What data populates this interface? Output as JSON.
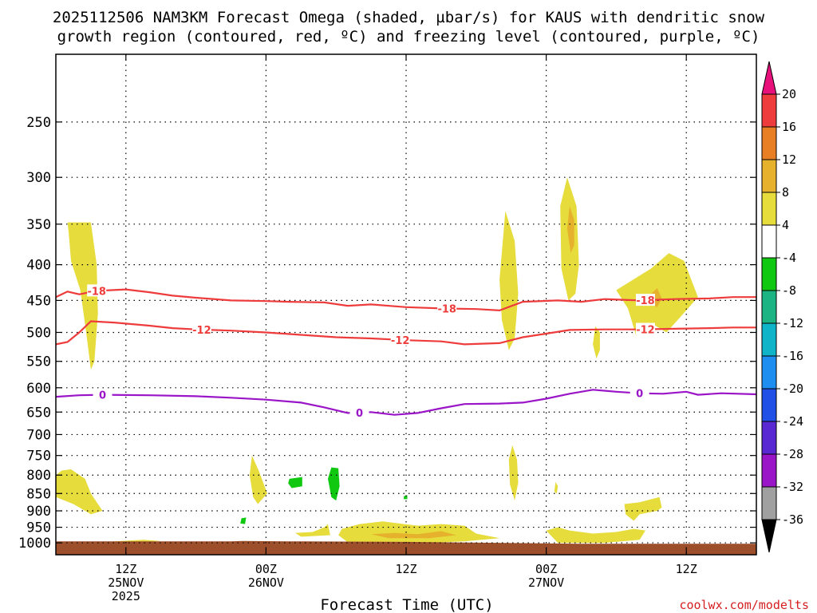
{
  "chart_data": {
    "type": "time-height cross section",
    "title_line1": "2025112506 NAM3KM Forecast Omega (shaded, µbar/s) for KAUS with dendritic snow",
    "title_line2": "growth region (contoured, red, ºC) and freezing level (contoured, purple, ºC)",
    "xlabel": "Forecast Time (UTC)",
    "credit": "coolwx.com/modelts",
    "x_range_hours": [
      0,
      60
    ],
    "y_axis": {
      "type": "pressure (log)",
      "range_hPa": [
        200,
        1040
      ],
      "ticks": [
        250,
        300,
        350,
        400,
        450,
        500,
        550,
        600,
        650,
        700,
        750,
        800,
        850,
        900,
        950,
        1000
      ]
    },
    "x_ticks": [
      {
        "hour": 6,
        "line1": "12Z",
        "line2": "25NOV",
        "line3": "2025"
      },
      {
        "hour": 18,
        "line1": "00Z",
        "line2": "26NOV",
        "line3": ""
      },
      {
        "hour": 30,
        "line1": "12Z",
        "line2": "",
        "line3": ""
      },
      {
        "hour": 42,
        "line1": "00Z",
        "line2": "27NOV",
        "line3": ""
      },
      {
        "hour": 54,
        "line1": "12Z",
        "line2": "",
        "line3": ""
      }
    ],
    "colorbar": {
      "labels": [
        "20",
        "16",
        "12",
        "8",
        "4",
        "-4",
        "-8",
        "-12",
        "-16",
        "-20",
        "-24",
        "-28",
        "-32",
        "-36"
      ],
      "colors": [
        "#e8107a",
        "#ee3c3c",
        "#e97f24",
        "#e6b22e",
        "#e6dc3c",
        "#ffffff",
        "#10c810",
        "#1cb482",
        "#10b4c8",
        "#1e8ff0",
        "#2050e6",
        "#5a28d2",
        "#9a14c8",
        "#a0a0a0",
        "#000000"
      ]
    },
    "contours": [
      {
        "label": "-18",
        "color": "#ee3c3c",
        "label_positions": [
          3.5,
          33.5,
          50.5
        ],
        "points": [
          [
            0,
            445
          ],
          [
            1,
            437
          ],
          [
            2,
            441
          ],
          [
            3.5,
            436
          ],
          [
            6,
            434
          ],
          [
            8,
            438
          ],
          [
            10,
            443
          ],
          [
            12,
            446
          ],
          [
            15,
            450
          ],
          [
            18,
            451
          ],
          [
            20,
            452
          ],
          [
            23,
            453
          ],
          [
            25,
            458
          ],
          [
            27,
            456
          ],
          [
            30,
            460
          ],
          [
            33,
            462
          ],
          [
            36,
            463
          ],
          [
            38,
            465
          ],
          [
            40,
            452
          ],
          [
            43,
            450
          ],
          [
            45,
            452
          ],
          [
            47,
            448
          ],
          [
            50,
            450
          ],
          [
            53,
            448
          ],
          [
            56,
            447
          ],
          [
            58,
            445
          ],
          [
            60,
            445
          ]
        ]
      },
      {
        "label": "-12",
        "color": "#ee3c3c",
        "label_positions": [
          12.5,
          29.5,
          50.5
        ],
        "points": [
          [
            0,
            520
          ],
          [
            1,
            516
          ],
          [
            2,
            500
          ],
          [
            3,
            482
          ],
          [
            5,
            484
          ],
          [
            8,
            489
          ],
          [
            10,
            493
          ],
          [
            12,
            495
          ],
          [
            15,
            497
          ],
          [
            18,
            500
          ],
          [
            21,
            504
          ],
          [
            24,
            508
          ],
          [
            27,
            510
          ],
          [
            30,
            513
          ],
          [
            33,
            515
          ],
          [
            35,
            520
          ],
          [
            38,
            518
          ],
          [
            40,
            508
          ],
          [
            42,
            502
          ],
          [
            44,
            496
          ],
          [
            47,
            495
          ],
          [
            50,
            495
          ],
          [
            53,
            494
          ],
          [
            56,
            493
          ],
          [
            58,
            492
          ],
          [
            60,
            492
          ]
        ]
      },
      {
        "label": "0",
        "color": "#9a14c8",
        "label_positions": [
          4,
          26,
          50
        ],
        "points": [
          [
            0,
            618
          ],
          [
            2,
            615
          ],
          [
            4,
            614
          ],
          [
            8,
            615
          ],
          [
            12,
            617
          ],
          [
            15,
            620
          ],
          [
            18,
            624
          ],
          [
            21,
            630
          ],
          [
            23,
            640
          ],
          [
            25,
            652
          ],
          [
            27,
            650
          ],
          [
            29,
            656
          ],
          [
            31,
            652
          ],
          [
            33,
            642
          ],
          [
            35,
            633
          ],
          [
            38,
            632
          ],
          [
            40,
            630
          ],
          [
            42,
            622
          ],
          [
            44,
            612
          ],
          [
            46,
            604
          ],
          [
            48,
            608
          ],
          [
            50,
            611
          ],
          [
            52,
            612
          ],
          [
            54,
            608
          ],
          [
            55,
            614
          ],
          [
            57,
            611
          ],
          [
            60,
            613
          ]
        ]
      }
    ],
    "omega_regions": [
      {
        "name": "upper-left-updraft",
        "value": 4,
        "points": [
          [
            1,
            348
          ],
          [
            3,
            348
          ],
          [
            3.5,
            400
          ],
          [
            3.6,
            470
          ],
          [
            3.3,
            550
          ],
          [
            3,
            565
          ],
          [
            2.6,
            500
          ],
          [
            2.1,
            435
          ],
          [
            1.3,
            395
          ],
          [
            1.1,
            360
          ]
        ]
      },
      {
        "name": "upper-right-plume-a",
        "value": 4,
        "points": [
          [
            38.5,
            335
          ],
          [
            39.3,
            370
          ],
          [
            39.6,
            440
          ],
          [
            39.3,
            510
          ],
          [
            38.8,
            530
          ],
          [
            38.2,
            480
          ],
          [
            38,
            420
          ]
        ]
      },
      {
        "name": "upper-right-plume-b",
        "value": 4,
        "points": [
          [
            43.8,
            300
          ],
          [
            44.6,
            330
          ],
          [
            44.8,
            400
          ],
          [
            44.5,
            440
          ],
          [
            43.9,
            450
          ],
          [
            43.3,
            405
          ],
          [
            43.2,
            330
          ]
        ]
      },
      {
        "name": "upper-right-plume-b-core",
        "value": 8,
        "points": [
          [
            44,
            330
          ],
          [
            44.4,
            345
          ],
          [
            44.4,
            375
          ],
          [
            44.1,
            385
          ],
          [
            43.8,
            355
          ]
        ]
      },
      {
        "name": "upper-right-cluster",
        "value": 4,
        "points": [
          [
            48,
            435
          ],
          [
            51,
            405
          ],
          [
            52.5,
            385
          ],
          [
            53.8,
            395
          ],
          [
            55,
            445
          ],
          [
            53.5,
            475
          ],
          [
            52.3,
            500
          ],
          [
            51,
            485
          ],
          [
            50.5,
            495
          ],
          [
            49.7,
            505
          ],
          [
            49,
            462
          ]
        ]
      },
      {
        "name": "upper-right-cluster-core",
        "value": 8,
        "points": [
          [
            51,
            440
          ],
          [
            51.5,
            432
          ],
          [
            51.9,
            447
          ],
          [
            51.5,
            460
          ],
          [
            51,
            455
          ]
        ]
      },
      {
        "name": "small-upper-right",
        "value": 4,
        "points": [
          [
            46.2,
            490
          ],
          [
            46.6,
            500
          ],
          [
            46.6,
            530
          ],
          [
            46.3,
            545
          ],
          [
            46,
            520
          ]
        ]
      },
      {
        "name": "low-left",
        "value": 4,
        "points": [
          [
            0,
            800
          ],
          [
            0.5,
            788
          ],
          [
            1.3,
            785
          ],
          [
            2.5,
            810
          ],
          [
            3,
            850
          ],
          [
            4,
            900
          ],
          [
            3,
            910
          ],
          [
            1.5,
            880
          ],
          [
            0,
            860
          ]
        ]
      },
      {
        "name": "low-left-streak",
        "value": 4,
        "points": [
          [
            3.5,
            1005
          ],
          [
            5,
            995
          ],
          [
            7.5,
            990
          ],
          [
            9,
            994
          ],
          [
            6,
            1002
          ]
        ]
      },
      {
        "name": "low-mid-a",
        "value": 4,
        "points": [
          [
            16.8,
            750
          ],
          [
            17.4,
            790
          ],
          [
            18.1,
            850
          ],
          [
            17.3,
            880
          ],
          [
            16.9,
            860
          ],
          [
            16.6,
            800
          ]
        ]
      },
      {
        "name": "low-mid-green-a",
        "value": -4,
        "points": [
          [
            20,
            810
          ],
          [
            21.1,
            805
          ],
          [
            21.1,
            830
          ],
          [
            20.2,
            835
          ],
          [
            19.9,
            822
          ]
        ]
      },
      {
        "name": "low-mid-green-b",
        "value": -4,
        "points": [
          [
            23.6,
            780
          ],
          [
            24.2,
            782
          ],
          [
            24.3,
            830
          ],
          [
            24,
            870
          ],
          [
            23.6,
            860
          ],
          [
            23.3,
            810
          ]
        ]
      },
      {
        "name": "low-mid-green-c",
        "value": -4,
        "points": [
          [
            15.9,
            922
          ],
          [
            16.3,
            920
          ],
          [
            16.2,
            940
          ],
          [
            15.8,
            938
          ]
        ]
      },
      {
        "name": "low-mid-green-d",
        "value": -4,
        "points": [
          [
            29.8,
            858
          ],
          [
            30.1,
            855
          ],
          [
            30.1,
            866
          ],
          [
            29.8,
            866
          ]
        ]
      },
      {
        "name": "low-mid-small",
        "value": 4,
        "points": [
          [
            20.5,
            968
          ],
          [
            22,
            965
          ],
          [
            23,
            950
          ],
          [
            23.3,
            940
          ],
          [
            23.5,
            975
          ],
          [
            21,
            980
          ]
        ]
      },
      {
        "name": "low-mid-large",
        "value": 4,
        "points": [
          [
            24.5,
            955
          ],
          [
            26,
            940
          ],
          [
            28,
            932
          ],
          [
            31,
            945
          ],
          [
            33,
            940
          ],
          [
            35,
            945
          ],
          [
            36,
            970
          ],
          [
            38,
            985
          ],
          [
            35,
            995
          ],
          [
            32,
            1000
          ],
          [
            28,
            1002
          ],
          [
            25,
            998
          ],
          [
            24.2,
            975
          ]
        ]
      },
      {
        "name": "low-mid-large-core",
        "value": 8,
        "points": [
          [
            27,
            972
          ],
          [
            29,
            968
          ],
          [
            31,
            972
          ],
          [
            33,
            962
          ],
          [
            34.3,
            975
          ],
          [
            32,
            985
          ],
          [
            28.5,
            985
          ]
        ]
      },
      {
        "name": "low-right-thin-a",
        "value": 4,
        "points": [
          [
            39.1,
            725
          ],
          [
            39.5,
            760
          ],
          [
            39.6,
            820
          ],
          [
            39.3,
            870
          ],
          [
            38.9,
            825
          ],
          [
            38.8,
            760
          ]
        ]
      },
      {
        "name": "low-right-thin-b",
        "value": 4,
        "points": [
          [
            42.8,
            818
          ],
          [
            43,
            830
          ],
          [
            42.9,
            850
          ],
          [
            42.7,
            845
          ]
        ]
      },
      {
        "name": "low-right-base",
        "value": 4,
        "points": [
          [
            42,
            960
          ],
          [
            43,
            950
          ],
          [
            44,
            960
          ],
          [
            46,
            970
          ],
          [
            48,
            965
          ],
          [
            49.5,
            955
          ],
          [
            50.5,
            960
          ],
          [
            50,
            990
          ],
          [
            47,
            1000
          ],
          [
            43,
            1000
          ]
        ]
      },
      {
        "name": "low-right-upper",
        "value": 4,
        "points": [
          [
            48.7,
            880
          ],
          [
            50,
            875
          ],
          [
            51.7,
            860
          ],
          [
            51.9,
            890
          ],
          [
            51.5,
            900
          ],
          [
            50,
            910
          ],
          [
            49.5,
            930
          ],
          [
            48.8,
            910
          ]
        ]
      }
    ],
    "surface_band": {
      "color": "#9c4f2a",
      "top_hPa_left": 995,
      "top_hPa_right": 1003,
      "bottom_hPa": 1040
    }
  }
}
